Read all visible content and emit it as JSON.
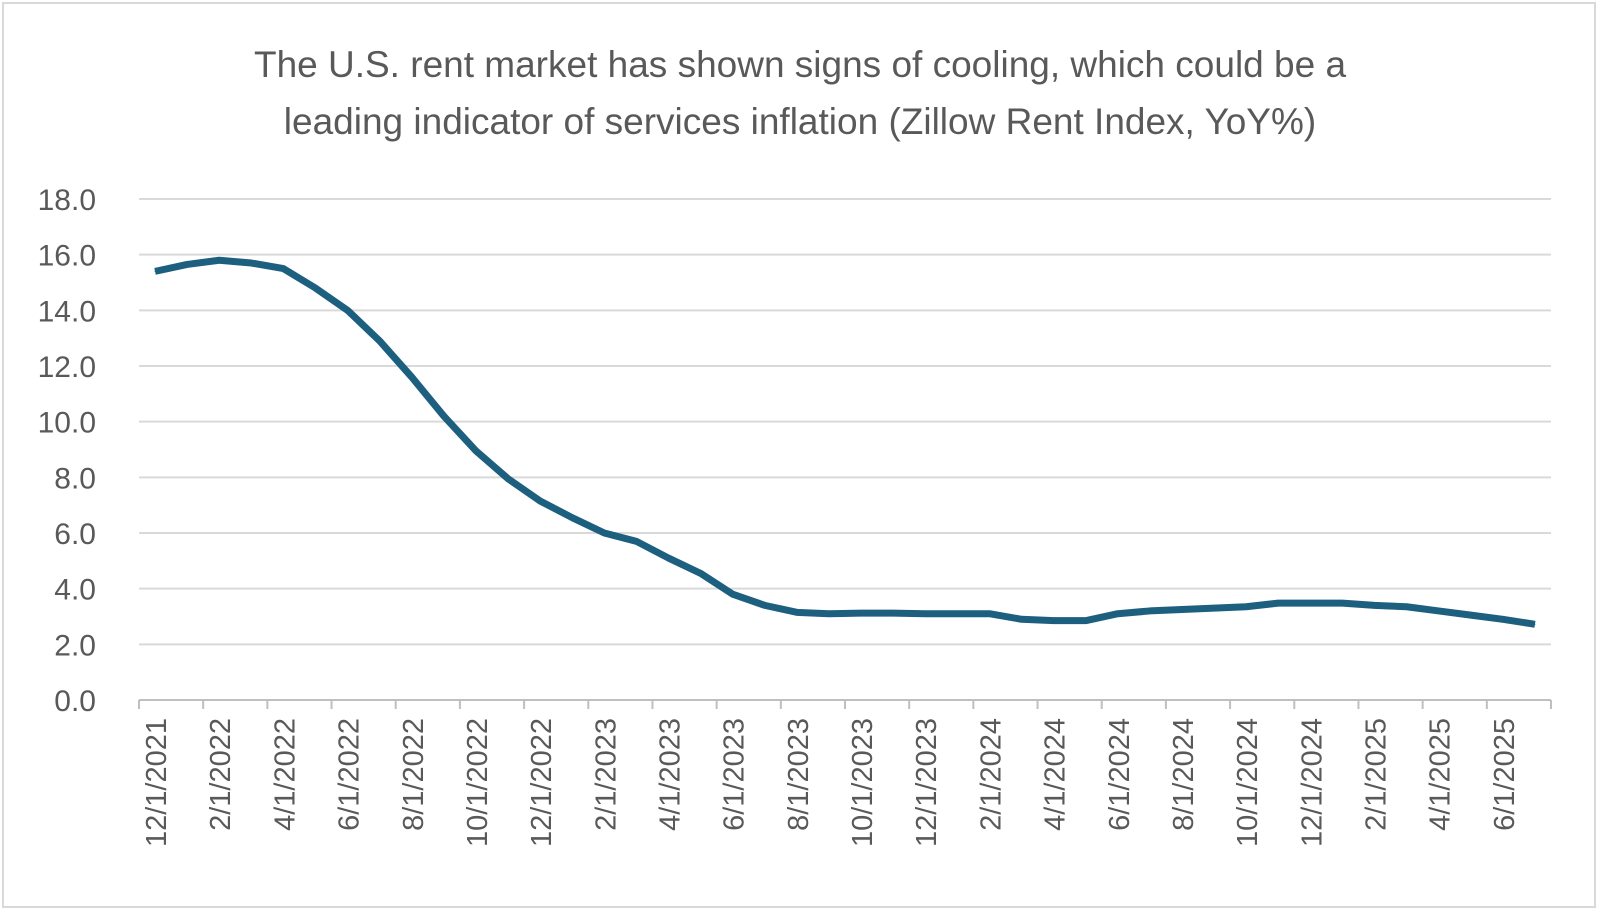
{
  "chart_data": {
    "type": "line",
    "title_lines": [
      "The U.S. rent market has shown signs of cooling, which could be a",
      "leading indicator of services inflation (Zillow Rent Index, YoY%)"
    ],
    "xlabel": "",
    "ylabel": "",
    "ylim": [
      0,
      18
    ],
    "yticks": [
      "0.0",
      "2.0",
      "4.0",
      "6.0",
      "8.0",
      "10.0",
      "12.0",
      "14.0",
      "16.0",
      "18.0"
    ],
    "grid": true,
    "legend": "none",
    "x_tick_labels": [
      "12/1/2021",
      "2/1/2022",
      "4/1/2022",
      "6/1/2022",
      "8/1/2022",
      "10/1/2022",
      "12/1/2022",
      "2/1/2023",
      "4/1/2023",
      "6/1/2023",
      "8/1/2023",
      "10/1/2023",
      "12/1/2023",
      "2/1/2024",
      "4/1/2024",
      "6/1/2024",
      "8/1/2024",
      "10/1/2024",
      "12/1/2024",
      "2/1/2025",
      "4/1/2025",
      "6/1/2025"
    ],
    "x": [
      "12/1/2021",
      "1/1/2022",
      "2/1/2022",
      "3/1/2022",
      "4/1/2022",
      "5/1/2022",
      "6/1/2022",
      "7/1/2022",
      "8/1/2022",
      "9/1/2022",
      "10/1/2022",
      "11/1/2022",
      "12/1/2022",
      "1/1/2023",
      "2/1/2023",
      "3/1/2023",
      "4/1/2023",
      "5/1/2023",
      "6/1/2023",
      "7/1/2023",
      "8/1/2023",
      "9/1/2023",
      "10/1/2023",
      "11/1/2023",
      "12/1/2023",
      "1/1/2024",
      "2/1/2024",
      "3/1/2024",
      "4/1/2024",
      "5/1/2024",
      "6/1/2024",
      "7/1/2024",
      "8/1/2024",
      "9/1/2024",
      "10/1/2024",
      "11/1/2024",
      "12/1/2024",
      "1/1/2025",
      "2/1/2025",
      "3/1/2025",
      "4/1/2025",
      "5/1/2025",
      "6/1/2025",
      "7/1/2025"
    ],
    "series": [
      {
        "color": "#1c5f7f",
        "values": [
          15.4,
          15.65,
          15.8,
          15.7,
          15.5,
          14.8,
          14.0,
          12.9,
          11.6,
          10.2,
          8.95,
          7.95,
          7.15,
          6.55,
          6.0,
          5.7,
          5.1,
          4.55,
          3.8,
          3.4,
          3.15,
          3.1,
          3.12,
          3.12,
          3.1,
          3.1,
          3.1,
          2.9,
          2.85,
          2.85,
          3.1,
          3.2,
          3.25,
          3.3,
          3.35,
          3.48,
          3.48,
          3.48,
          3.4,
          3.35,
          3.2,
          3.05,
          2.9,
          2.72
        ]
      }
    ]
  }
}
